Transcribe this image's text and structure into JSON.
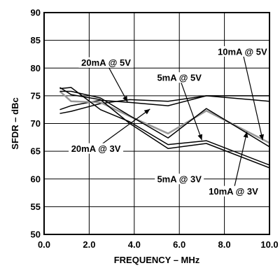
{
  "chart_data": {
    "type": "line",
    "title": "",
    "xlabel": "FREQUENCY – MHz",
    "ylabel": "SFDR – dBc",
    "xlim": [
      0,
      10
    ],
    "ylim": [
      50,
      90
    ],
    "grid": true,
    "x_ticks": [
      "0.0",
      "2.0",
      "4.0",
      "6.0",
      "8.0",
      "10.0"
    ],
    "y_ticks": [
      "50",
      "55",
      "60",
      "65",
      "70",
      "75",
      "80",
      "85",
      "90"
    ],
    "series": [
      {
        "name": "20mA @ 5V",
        "color": "#000000",
        "x": [
          0.7,
          1.2,
          2.5,
          3.8,
          5.5,
          7.2,
          10.0
        ],
        "y": [
          72.5,
          73.2,
          74.2,
          73.8,
          73.2,
          75.0,
          74.0
        ]
      },
      {
        "name": "5mA @ 5V",
        "color": "#000000",
        "x": [
          0.7,
          1.2,
          2.5,
          3.8,
          5.5,
          7.2,
          10.0
        ],
        "y": [
          71.8,
          72.2,
          73.6,
          74.3,
          74.0,
          75.0,
          75.0
        ]
      },
      {
        "name": "10mA @ 5V",
        "color": "#999999",
        "x": [
          0.7,
          1.2,
          2.5,
          3.8,
          5.5,
          7.2,
          10.0
        ],
        "y": [
          75.8,
          74.0,
          73.8,
          71.3,
          68.2,
          72.3,
          66.5
        ]
      },
      {
        "name": "20mA @ 3V",
        "color": "#000000",
        "x": [
          0.7,
          1.2,
          2.5,
          3.8,
          5.5,
          7.2,
          10.0
        ],
        "y": [
          76.3,
          76.5,
          72.5,
          70.3,
          66.2,
          66.9,
          62.5
        ]
      },
      {
        "name": "5mA @ 3V",
        "color": "#000000",
        "x": [
          0.7,
          1.2,
          2.5,
          3.8,
          5.5,
          7.2,
          10.0
        ],
        "y": [
          76.5,
          75.2,
          74.3,
          70.0,
          65.5,
          66.4,
          62.0
        ]
      },
      {
        "name": "10mA @ 3V",
        "color": "#000000",
        "x": [
          0.7,
          1.2,
          2.5,
          3.8,
          5.5,
          7.2,
          10.0
        ],
        "y": [
          75.8,
          75.8,
          74.6,
          71.4,
          67.4,
          72.7,
          65.8
        ]
      }
    ],
    "annotations": [
      {
        "text": "20mA @ 5V",
        "x": 2.75,
        "y": 81.0,
        "target": [
          3.7,
          73.9
        ]
      },
      {
        "text": "10mA @ 5V",
        "x": 8.8,
        "y": 83.0,
        "target": [
          9.7,
          67.0
        ]
      },
      {
        "text": "5mA @ 5V",
        "x": 6.0,
        "y": 78.3,
        "target": [
          7.0,
          67.0
        ]
      },
      {
        "text": "20mA @ 3V",
        "x": 2.3,
        "y": 65.5,
        "target": [
          4.7,
          72.6
        ]
      },
      {
        "text": "5mA @ 3V",
        "x": 6.0,
        "y": 60.0,
        "target": [
          6.5,
          60.4
        ]
      },
      {
        "text": "10mA @ 3V",
        "x": 8.4,
        "y": 57.8,
        "target": [
          9.0,
          68.5
        ]
      }
    ]
  }
}
